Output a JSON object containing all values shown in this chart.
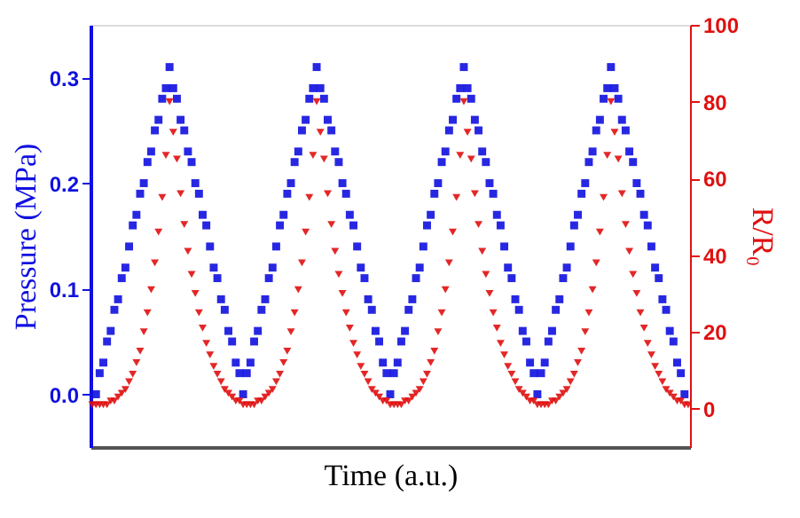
{
  "chart_data": {
    "type": "scatter",
    "xlabel": "Time (a.u.)",
    "ylabel": "Pressure (MPa)",
    "y2label": "R/R₀",
    "categories": [
      null,
      null,
      null,
      null,
      null,
      null,
      null,
      null,
      null,
      null,
      null,
      null,
      null,
      null,
      null,
      null,
      null,
      null,
      null,
      null,
      null,
      null,
      null,
      null,
      null,
      null,
      null,
      null,
      null,
      null,
      null,
      null,
      null,
      null,
      null,
      null,
      null,
      null,
      null,
      null,
      null,
      null,
      null,
      null,
      null,
      null,
      null,
      null,
      null,
      null,
      null,
      null,
      null,
      null,
      null,
      null,
      null,
      null,
      null,
      null,
      null,
      null,
      null,
      null,
      null,
      null,
      null,
      null,
      null,
      null,
      null,
      null,
      null,
      null,
      null,
      null,
      null,
      null,
      null,
      null,
      null,
      null,
      null,
      null,
      null,
      null,
      null,
      null,
      null,
      null,
      null,
      null,
      null,
      null,
      null,
      null,
      null,
      null,
      null,
      null,
      null,
      null,
      null,
      null,
      null,
      null,
      null,
      null,
      null,
      null,
      null,
      null,
      null,
      null,
      null,
      null,
      null,
      null,
      null,
      null,
      null,
      null,
      null,
      null,
      null,
      null,
      null,
      null,
      null,
      null,
      null,
      null,
      null,
      null,
      null,
      null,
      null,
      null,
      null,
      null,
      null,
      null,
      null,
      null,
      null,
      null,
      null,
      null,
      null,
      null,
      null,
      null,
      null,
      null,
      null,
      null,
      null,
      null,
      null,
      null,
      null,
      null,
      null
    ],
    "series": [
      {
        "marker": "square",
        "color": "#1010e0",
        "values": [
          null,
          0,
          0.02,
          0.03,
          0.05,
          0.06,
          0.08,
          0.09,
          0.11,
          0.12,
          0.14,
          0.16,
          0.17,
          0.19,
          0.2,
          0.22,
          0.23,
          0.25,
          0.26,
          0.28,
          0.29,
          0.31,
          0.29,
          0.28,
          0.26,
          0.25,
          0.23,
          0.22,
          0.2,
          0.19,
          0.17,
          0.16,
          0.14,
          0.12,
          0.11,
          0.09,
          0.08,
          0.06,
          0.05,
          0.03,
          0.02,
          0,
          0.02,
          0.03,
          0.05,
          0.06,
          0.08,
          0.09,
          0.11,
          0.12,
          0.14,
          0.16,
          0.17,
          0.19,
          0.2,
          0.22,
          0.23,
          0.25,
          0.26,
          0.28,
          0.29,
          0.31,
          0.29,
          0.28,
          0.26,
          0.25,
          0.23,
          0.22,
          0.2,
          0.19,
          0.17,
          0.16,
          0.14,
          0.12,
          0.11,
          0.09,
          0.08,
          0.06,
          0.05,
          0.03,
          0.02,
          0,
          0.02,
          0.03,
          0.05,
          0.06,
          0.08,
          0.09,
          0.11,
          0.12,
          0.14,
          0.16,
          0.17,
          0.19,
          0.2,
          0.22,
          0.23,
          0.25,
          0.26,
          0.28,
          0.29,
          0.31,
          0.29,
          0.28,
          0.26,
          0.25,
          0.23,
          0.22,
          0.2,
          0.19,
          0.17,
          0.16,
          0.14,
          0.12,
          0.11,
          0.09,
          0.08,
          0.06,
          0.05,
          0.03,
          0.02,
          0,
          0.02,
          0.03,
          0.05,
          0.06,
          0.08,
          0.09,
          0.11,
          0.12,
          0.14,
          0.16,
          0.17,
          0.19,
          0.2,
          0.22,
          0.23,
          0.25,
          0.26,
          0.28,
          0.29,
          0.31,
          0.29,
          0.28,
          0.26,
          0.25,
          0.23,
          0.22,
          0.2,
          0.19,
          0.17,
          0.16,
          0.14,
          0.12,
          0.11,
          0.09,
          0.08,
          0.06,
          0.05,
          0.03,
          0.02,
          0,
          null
        ]
      },
      {
        "marker": "triangle",
        "axis": "y2",
        "color": "#e01010",
        "values": [
          1,
          1,
          1,
          1,
          1,
          2,
          2,
          3,
          4,
          5,
          7,
          9,
          12,
          15,
          20,
          25,
          31,
          38,
          46,
          55,
          66,
          80,
          72,
          65,
          56,
          48,
          41,
          35,
          30,
          25,
          21,
          17,
          14,
          11,
          9,
          7,
          5,
          4,
          3,
          2,
          2,
          1,
          1,
          1,
          1,
          2,
          2,
          3,
          4,
          5,
          7,
          9,
          12,
          15,
          20,
          25,
          31,
          38,
          46,
          55,
          66,
          80,
          72,
          65,
          56,
          48,
          41,
          35,
          30,
          25,
          21,
          17,
          14,
          11,
          9,
          7,
          5,
          4,
          3,
          2,
          2,
          1,
          1,
          1,
          1,
          2,
          2,
          3,
          4,
          5,
          7,
          9,
          12,
          15,
          20,
          25,
          31,
          38,
          46,
          55,
          66,
          80,
          72,
          65,
          56,
          48,
          41,
          35,
          30,
          25,
          21,
          17,
          14,
          11,
          9,
          7,
          5,
          4,
          3,
          2,
          2,
          1,
          1,
          1,
          1,
          2,
          2,
          3,
          4,
          5,
          7,
          9,
          12,
          15,
          20,
          25,
          31,
          38,
          46,
          55,
          66,
          80,
          72,
          65,
          56,
          48,
          41,
          35,
          30,
          25,
          21,
          17,
          14,
          11,
          9,
          7,
          5,
          4,
          3,
          2,
          2,
          1,
          1
        ]
      }
    ],
    "ylim": [
      -0.05,
      0.35
    ],
    "yticks": [
      {
        "value": 0,
        "label": "0.0"
      },
      {
        "value": 0.1,
        "label": "0.1"
      },
      {
        "value": 0.2,
        "label": "0.2"
      },
      {
        "value": 0.3,
        "label": "0.3"
      }
    ],
    "y2lim": [
      -10,
      100
    ],
    "y2ticks": [
      0,
      20,
      40,
      60,
      80,
      100
    ],
    "tick_labels": "y"
  }
}
